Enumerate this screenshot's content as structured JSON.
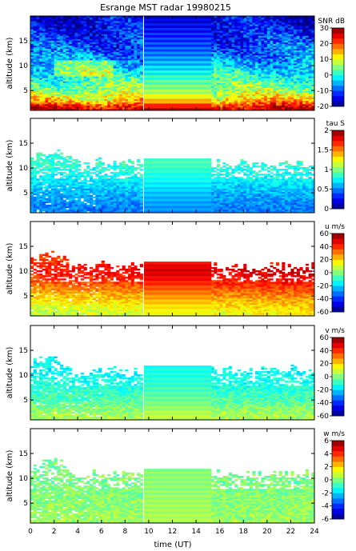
{
  "chart_data": {
    "type": "heatmap",
    "title": "Esrange MST radar 19980215",
    "xlabel": "time (UT)",
    "x_ticks": [
      0,
      2,
      4,
      6,
      8,
      10,
      12,
      14,
      16,
      18,
      20,
      22,
      24
    ],
    "xlim": [
      0,
      24
    ],
    "data_gap_hours": [
      9.6,
      15.3
    ],
    "colormap": "jet",
    "panels": [
      {
        "id": "snr",
        "ylabel": "altitude (km)",
        "y_ticks": [
          5,
          10,
          15
        ],
        "ylim": [
          1,
          20
        ],
        "colorbar_label": "SNR dB",
        "colorbar_range": [
          -20,
          30
        ],
        "colorbar_ticks": [
          -20,
          -10,
          0,
          10,
          20,
          30
        ],
        "typical_profile": [
          {
            "alt_km": 1.5,
            "value": 26
          },
          {
            "alt_km": 3,
            "value": 14
          },
          {
            "alt_km": 5,
            "value": 6
          },
          {
            "alt_km": 8,
            "value": 0
          },
          {
            "alt_km": 10,
            "value": -4
          },
          {
            "alt_km": 13,
            "value": -9
          },
          {
            "alt_km": 17,
            "value": -13
          },
          {
            "alt_km": 19,
            "value": -15
          }
        ]
      },
      {
        "id": "tau",
        "ylabel": "altitude (km)",
        "y_ticks": [
          5,
          10,
          15
        ],
        "ylim": [
          1,
          20
        ],
        "colorbar_label": "tau S",
        "colorbar_range": [
          0,
          2
        ],
        "colorbar_ticks": [
          0,
          0.5,
          1,
          1.5,
          2
        ],
        "typical_profile": [
          {
            "alt_km": 2,
            "value": 0.5
          },
          {
            "alt_km": 5,
            "value": 0.6
          },
          {
            "alt_km": 8,
            "value": 0.75
          },
          {
            "alt_km": 11,
            "value": 0.85
          }
        ]
      },
      {
        "id": "u",
        "ylabel": "altitude (km)",
        "y_ticks": [
          5,
          10,
          15
        ],
        "ylim": [
          1,
          20
        ],
        "colorbar_label": "u m/s",
        "colorbar_range": [
          -60,
          60
        ],
        "colorbar_ticks": [
          -60,
          -40,
          -20,
          0,
          20,
          40,
          60
        ],
        "typical_profile": [
          {
            "alt_km": 2,
            "value": 12
          },
          {
            "alt_km": 5,
            "value": 25
          },
          {
            "alt_km": 8,
            "value": 40
          },
          {
            "alt_km": 10,
            "value": 48
          },
          {
            "alt_km": 12,
            "value": 42
          }
        ]
      },
      {
        "id": "v",
        "ylabel": "altitude (km)",
        "y_ticks": [
          5,
          10,
          15
        ],
        "ylim": [
          1,
          20
        ],
        "colorbar_label": "v m/s",
        "colorbar_range": [
          -60,
          60
        ],
        "colorbar_ticks": [
          -60,
          -40,
          -20,
          0,
          20,
          40,
          60
        ],
        "typical_profile": [
          {
            "alt_km": 2,
            "value": 5
          },
          {
            "alt_km": 5,
            "value": -5
          },
          {
            "alt_km": 8,
            "value": -12
          },
          {
            "alt_km": 11,
            "value": -15
          }
        ]
      },
      {
        "id": "w",
        "ylabel": "altitude (km)",
        "y_ticks": [
          5,
          10,
          15
        ],
        "ylim": [
          1,
          20
        ],
        "colorbar_label": "w m/s",
        "colorbar_range": [
          -6,
          6
        ],
        "colorbar_ticks": [
          -6,
          -4,
          -2,
          0,
          2,
          4,
          6
        ],
        "typical_profile": [
          {
            "alt_km": 2,
            "value": 0.3
          },
          {
            "alt_km": 6,
            "value": 0.1
          },
          {
            "alt_km": 10,
            "value": -0.1
          }
        ]
      }
    ]
  }
}
